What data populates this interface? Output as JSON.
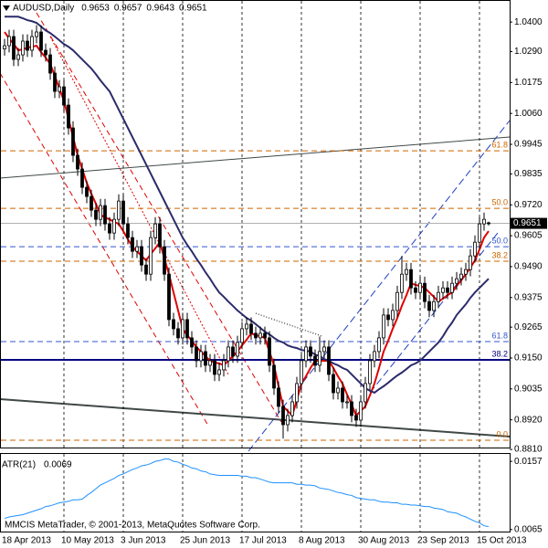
{
  "chart_data": [
    {
      "type": "candlestick",
      "title": "AUDUSD,Daily",
      "categories": [
        "18 Apr 2013",
        null,
        null,
        null,
        null,
        null,
        null,
        null,
        null,
        null,
        null,
        null,
        null,
        "10 May 2013",
        null,
        null,
        null,
        null,
        null,
        null,
        null,
        null,
        null,
        null,
        null,
        null,
        "3 Jun 2013",
        null,
        null,
        null,
        null,
        null,
        null,
        null,
        null,
        null,
        null,
        null,
        null,
        "25 Jun 2013",
        null,
        null,
        null,
        null,
        null,
        null,
        null,
        null,
        null,
        null,
        null,
        null,
        "17 Jul 2013",
        null,
        null,
        null,
        null,
        null,
        null,
        null,
        null,
        null,
        null,
        null,
        null,
        "8 Aug 2013",
        null,
        null,
        null,
        null,
        null,
        null,
        null,
        null,
        null,
        null,
        null,
        null,
        "30 Aug 2013",
        null,
        null,
        null,
        null,
        null,
        null,
        null,
        null,
        null,
        null,
        null,
        null,
        "23 Sep 2013",
        null,
        null,
        null,
        null,
        null,
        null,
        null,
        null,
        null,
        null,
        null,
        null,
        "15 Oct 2013",
        null,
        null
      ],
      "open": [
        1.03,
        1.0312,
        1.0346,
        1.0261,
        1.0278,
        1.0329,
        1.0295,
        1.0346,
        1.0363,
        1.0295,
        1.0278,
        1.021,
        1.0142,
        1.0159,
        1.0091,
        1.0006,
        0.9904,
        0.9853,
        0.9785,
        0.9751,
        0.97,
        0.9666,
        0.9717,
        0.9649,
        0.9615,
        0.9666,
        0.9734,
        0.9649,
        0.9598,
        0.9547,
        0.9564,
        0.9496,
        0.9462,
        0.9598,
        0.9649,
        0.9564,
        0.9462,
        0.9293,
        0.9259,
        0.9225,
        0.9293,
        0.9225,
        0.9191,
        0.914,
        0.9174,
        0.9123,
        0.914,
        0.9089,
        0.9106,
        0.914,
        0.9191,
        0.9157,
        0.9208,
        0.9259,
        0.9276,
        0.9242,
        0.9225,
        0.9242,
        0.9225,
        0.9123,
        0.9038,
        0.897,
        0.8902,
        0.8936,
        0.8987,
        0.9055,
        0.914,
        0.9191,
        0.9157,
        0.9123,
        0.9174,
        0.9191,
        0.9089,
        0.9021,
        0.9038,
        0.8987,
        0.8987,
        0.8936,
        0.8919,
        0.8987,
        0.9055,
        0.914,
        0.9174,
        0.9225,
        0.931,
        0.9293,
        0.9327,
        0.9394,
        0.9462,
        0.9479,
        0.9411,
        0.9394,
        0.9428,
        0.936,
        0.9327,
        0.936,
        0.9394,
        0.9411,
        0.9394,
        0.9428,
        0.9445,
        0.9462,
        0.9479,
        0.953,
        0.9581,
        0.9649,
        0.9653
      ],
      "high": [
        1.0337,
        1.0371,
        1.0371,
        1.0303,
        1.0354,
        1.0354,
        1.0371,
        1.0388,
        1.0388,
        1.032,
        1.0303,
        1.0235,
        1.0184,
        1.0184,
        1.0116,
        1.0031,
        0.9929,
        0.9878,
        0.981,
        0.9776,
        0.9725,
        0.9742,
        0.9742,
        0.9674,
        0.9691,
        0.9759,
        0.9759,
        0.9674,
        0.9623,
        0.9589,
        0.9589,
        0.9521,
        0.9623,
        0.9674,
        0.9674,
        0.9589,
        0.9487,
        0.9318,
        0.9284,
        0.9318,
        0.9318,
        0.925,
        0.9216,
        0.9199,
        0.9199,
        0.9165,
        0.9165,
        0.9131,
        0.9165,
        0.9216,
        0.9216,
        0.9233,
        0.9284,
        0.9301,
        0.9301,
        0.9267,
        0.9267,
        0.9267,
        0.925,
        0.9148,
        0.9063,
        0.8995,
        0.8961,
        0.9012,
        0.908,
        0.9165,
        0.9216,
        0.9216,
        0.9182,
        0.923,
        0.9216,
        0.9216,
        0.9114,
        0.9063,
        0.9063,
        0.9012,
        0.9012,
        0.8961,
        0.9012,
        0.908,
        0.9165,
        0.9199,
        0.925,
        0.9335,
        0.9335,
        0.9352,
        0.9419,
        0.953,
        0.9504,
        0.9504,
        0.9436,
        0.9453,
        0.9453,
        0.9385,
        0.9385,
        0.9419,
        0.9436,
        0.9436,
        0.9453,
        0.947,
        0.9487,
        0.9504,
        0.9555,
        0.9606,
        0.9674,
        0.9691,
        0.9657
      ],
      "low": [
        1.0275,
        1.0287,
        1.0236,
        1.0236,
        1.0253,
        1.027,
        1.027,
        1.0321,
        1.027,
        1.0253,
        1.0185,
        1.0117,
        1.0117,
        1.0066,
        0.9981,
        0.9879,
        0.9828,
        0.976,
        0.9726,
        0.9675,
        0.9641,
        0.9641,
        0.9624,
        0.959,
        0.959,
        0.9641,
        0.9624,
        0.9573,
        0.9522,
        0.9522,
        0.9471,
        0.9437,
        0.9437,
        0.9573,
        0.9539,
        0.9437,
        0.9268,
        0.9234,
        0.92,
        0.92,
        0.92,
        0.9166,
        0.9115,
        0.9115,
        0.9098,
        0.9098,
        0.9064,
        0.9064,
        0.9081,
        0.9115,
        0.9132,
        0.9132,
        0.9183,
        0.9234,
        0.9217,
        0.92,
        0.92,
        0.92,
        0.9098,
        0.9013,
        0.8945,
        0.885,
        0.8877,
        0.8911,
        0.8962,
        0.903,
        0.9115,
        0.9132,
        0.9098,
        0.9098,
        0.9149,
        0.9064,
        0.8996,
        0.8996,
        0.8962,
        0.8962,
        0.8911,
        0.8894,
        0.8894,
        0.8962,
        0.903,
        0.9115,
        0.9149,
        0.92,
        0.9268,
        0.9268,
        0.9302,
        0.9369,
        0.9437,
        0.9386,
        0.9369,
        0.9369,
        0.9335,
        0.9302,
        0.9302,
        0.9335,
        0.9369,
        0.9369,
        0.9369,
        0.9403,
        0.942,
        0.9437,
        0.9454,
        0.9505,
        0.9556,
        0.9624,
        0.9643
      ],
      "close": [
        1.0312,
        1.0346,
        1.0261,
        1.0278,
        1.0329,
        1.0295,
        1.0346,
        1.0363,
        1.0295,
        1.0278,
        1.021,
        1.0142,
        1.0159,
        1.0091,
        1.0006,
        0.9904,
        0.9853,
        0.9785,
        0.9751,
        0.97,
        0.9666,
        0.9717,
        0.9649,
        0.9615,
        0.9666,
        0.9734,
        0.9649,
        0.9598,
        0.9547,
        0.9564,
        0.9496,
        0.9462,
        0.9598,
        0.9649,
        0.9564,
        0.9462,
        0.9293,
        0.9259,
        0.9225,
        0.9293,
        0.9225,
        0.9191,
        0.914,
        0.9174,
        0.9123,
        0.914,
        0.9089,
        0.9106,
        0.914,
        0.9191,
        0.9157,
        0.9208,
        0.9259,
        0.9276,
        0.9242,
        0.9225,
        0.9242,
        0.9225,
        0.9123,
        0.9038,
        0.897,
        0.8902,
        0.8936,
        0.8987,
        0.9055,
        0.914,
        0.9191,
        0.9157,
        0.9123,
        0.9174,
        0.9191,
        0.9089,
        0.9021,
        0.9038,
        0.8987,
        0.8987,
        0.8936,
        0.8919,
        0.8987,
        0.9055,
        0.914,
        0.9174,
        0.9225,
        0.931,
        0.9293,
        0.9327,
        0.9394,
        0.9462,
        0.9479,
        0.9411,
        0.9394,
        0.9428,
        0.936,
        0.9327,
        0.936,
        0.9394,
        0.9411,
        0.9394,
        0.9428,
        0.9445,
        0.9462,
        0.9479,
        0.953,
        0.9581,
        0.9649,
        0.9666,
        0.9651
      ],
      "up_color": "#ffffff",
      "down_color": "#000000",
      "overlays": [
        {
          "color": "#e00000",
          "values": [
            1.0363,
            1.0339,
            1.0318,
            1.0295,
            1.0298,
            1.0305,
            1.0308,
            1.0312,
            1.0288,
            1.0268,
            1.0244,
            1.02,
            1.0152,
            1.0108,
            1.004,
            0.9972,
            0.9904,
            0.9853,
            0.9802,
            0.9761,
            0.9724,
            0.9683,
            0.9673,
            0.9666,
            0.9656,
            0.9649,
            0.9622,
            0.9592,
            0.9564,
            0.9547,
            0.953,
            0.9513,
            0.9537,
            0.9558,
            0.9581,
            0.952,
            0.9462,
            0.9394,
            0.9327,
            0.9259,
            0.9235,
            0.9214,
            0.9191,
            0.9174,
            0.9157,
            0.914,
            0.9133,
            0.913,
            0.9123,
            0.914,
            0.9157,
            0.9174,
            0.9197,
            0.9218,
            0.9242,
            0.9235,
            0.9231,
            0.9225,
            0.9174,
            0.9123,
            0.9045,
            0.897,
            0.8953,
            0.8936,
            0.8994,
            0.9055,
            0.9082,
            0.9113,
            0.914,
            0.914,
            0.914,
            0.914,
            0.9113,
            0.9082,
            0.9055,
            0.9014,
            0.8977,
            0.8936,
            0.8953,
            0.897,
            0.9011,
            0.9055,
            0.9113,
            0.9174,
            0.9214,
            0.9259,
            0.9299,
            0.9344,
            0.9384,
            0.9428,
            0.9422,
            0.9418,
            0.9411,
            0.9394,
            0.9378,
            0.936,
            0.9371,
            0.9384,
            0.9394,
            0.9418,
            0.9439,
            0.9462,
            0.9486,
            0.9513,
            0.9554,
            0.9598,
            0.9622
          ]
        },
        {
          "color": "#2b2b6b",
          "values": [
            1.042,
            1.042,
            1.042,
            1.042,
            1.0414,
            1.0407,
            1.0403,
            1.0397,
            1.0383,
            1.0369,
            1.0359,
            1.0346,
            1.0332,
            1.0318,
            1.0308,
            1.0295,
            1.0278,
            1.0261,
            1.0244,
            1.0227,
            1.0206,
            1.0183,
            1.0162,
            1.0142,
            1.0108,
            1.0074,
            1.004,
            1.0006,
            0.9972,
            0.9938,
            0.9904,
            0.987,
            0.9836,
            0.9802,
            0.9768,
            0.9734,
            0.97,
            0.9666,
            0.9632,
            0.9598,
            0.9571,
            0.9547,
            0.952,
            0.9496,
            0.9469,
            0.9445,
            0.9418,
            0.9394,
            0.9378,
            0.936,
            0.9344,
            0.9327,
            0.9313,
            0.9299,
            0.9289,
            0.9276,
            0.9262,
            0.9248,
            0.9238,
            0.9225,
            0.9214,
            0.9208,
            0.9197,
            0.9191,
            0.9187,
            0.918,
            0.9177,
            0.9174,
            0.9163,
            0.9157,
            0.9146,
            0.914,
            0.913,
            0.9123,
            0.9113,
            0.9106,
            0.9089,
            0.9072,
            0.9055,
            0.9038,
            0.9028,
            0.9021,
            0.9034,
            0.9045,
            0.9058,
            0.9072,
            0.9085,
            0.9096,
            0.9109,
            0.9123,
            0.913,
            0.914,
            0.9157,
            0.9174,
            0.9191,
            0.9208,
            0.9231,
            0.9259,
            0.9282,
            0.931,
            0.933,
            0.935,
            0.9374,
            0.9394,
            0.9411,
            0.9428,
            0.9445
          ]
        }
      ],
      "levels": [
        {
          "label": "61.8",
          "value": 0.9921,
          "color": "#cc6600",
          "dash": true
        },
        {
          "label": "50.0",
          "value": 0.9707,
          "color": "#cc6600",
          "dash": true
        },
        {
          "label": "38.2",
          "value": 0.951,
          "color": "#cc6600",
          "dash": true
        },
        {
          "label": "0.0",
          "value": 0.8844,
          "color": "#cc6600",
          "dash": true
        },
        {
          "label": "50.0",
          "value": 0.9564,
          "color": "#3355cc",
          "dash": true
        },
        {
          "label": "61.8",
          "value": 0.9211,
          "color": "#3355cc",
          "dash": true
        },
        {
          "label": "38.2",
          "value": 0.9143,
          "color": "#000080",
          "dash": false
        }
      ],
      "ylim": [
        0.8817,
        1.0482
      ],
      "yticks": [
        {
          "value": 1.04,
          "label": "1.0400"
        },
        {
          "value": 1.029,
          "label": "1.0290"
        },
        1.0175,
        {
          "value": 1.006,
          "label": "1.0060"
        },
        0.9945,
        0.9835,
        {
          "value": 0.972,
          "label": "0.9720"
        },
        0.9605,
        {
          "value": 0.949,
          "label": "0.9490"
        },
        0.9375,
        0.9265,
        {
          "value": 0.915,
          "label": "0.9150"
        },
        0.9035,
        {
          "value": 0.892,
          "label": "0.8920"
        },
        {
          "value": 0.881,
          "label": "0.8810"
        }
      ],
      "grid": true,
      "footer": "MMCIS MetaTrader, © 2001-2013, MetaQuotes Software Corp."
    },
    {
      "type": "line",
      "title": "ATR(21)",
      "values": [
        0.008,
        0.0082,
        0.0083,
        0.0084,
        0.0085,
        0.0087,
        0.0089,
        0.0091,
        0.0093,
        0.0096,
        0.0097,
        0.0099,
        0.0101,
        0.0102,
        0.0103,
        0.0105,
        0.0105,
        0.0106,
        0.0111,
        0.0115,
        0.012,
        0.0125,
        0.0128,
        0.0131,
        0.0134,
        0.0138,
        0.014,
        0.0143,
        0.0146,
        0.0148,
        0.0151,
        0.0152,
        0.0154,
        0.0157,
        0.0158,
        0.016,
        0.016,
        0.0157,
        0.0156,
        0.0153,
        0.0151,
        0.0148,
        0.0147,
        0.0144,
        0.0143,
        0.014,
        0.0139,
        0.0138,
        0.0138,
        0.0138,
        0.0138,
        0.0138,
        0.0137,
        0.0137,
        0.0135,
        0.0135,
        0.0133,
        0.0131,
        0.0129,
        0.0128,
        0.0128,
        0.0128,
        0.0128,
        0.0128,
        0.0126,
        0.0126,
        0.0125,
        0.0125,
        0.0124,
        0.0121,
        0.012,
        0.0119,
        0.0117,
        0.0115,
        0.0114,
        0.0112,
        0.0111,
        0.0108,
        0.0107,
        0.0106,
        0.0105,
        0.0105,
        0.0103,
        0.0102,
        0.0102,
        0.0101,
        0.0101,
        0.0099,
        0.0099,
        0.0098,
        0.0098,
        0.0097,
        0.0096,
        0.0096,
        0.0094,
        0.0093,
        0.0092,
        0.0089,
        0.0088,
        0.0087,
        0.0084,
        0.0082,
        0.0079,
        0.0076,
        0.0074,
        0.007,
        0.0069
      ],
      "color": "#1e90ff",
      "ylim": [
        0.0061,
        0.0167
      ],
      "yticks": [
        0.0157,
        0.0065
      ]
    }
  ]
}
